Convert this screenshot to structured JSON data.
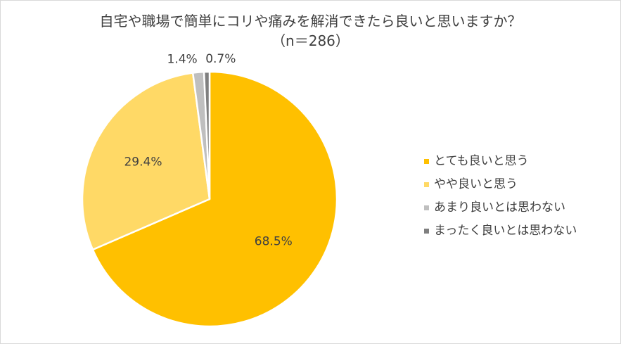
{
  "chart_data": {
    "type": "pie",
    "title": "自宅や職場で簡単にコリや痛みを解消できたら良いと思いますか？",
    "subtitle": "（n＝286）",
    "categories": [
      "とても良いと思う",
      "やや良いと思う",
      "あまり良いとは思わない",
      "まったく良いとは思わない"
    ],
    "values": [
      68.5,
      29.4,
      1.4,
      0.7
    ],
    "value_labels": [
      "68.5%",
      "29.4%",
      "1.4%",
      "0.7%"
    ],
    "colors": [
      "#FFC000",
      "#FFD966",
      "#BFBFBF",
      "#7F7F7F"
    ],
    "start_angle": "12 o'clock, clockwise",
    "legend_position": "right"
  }
}
